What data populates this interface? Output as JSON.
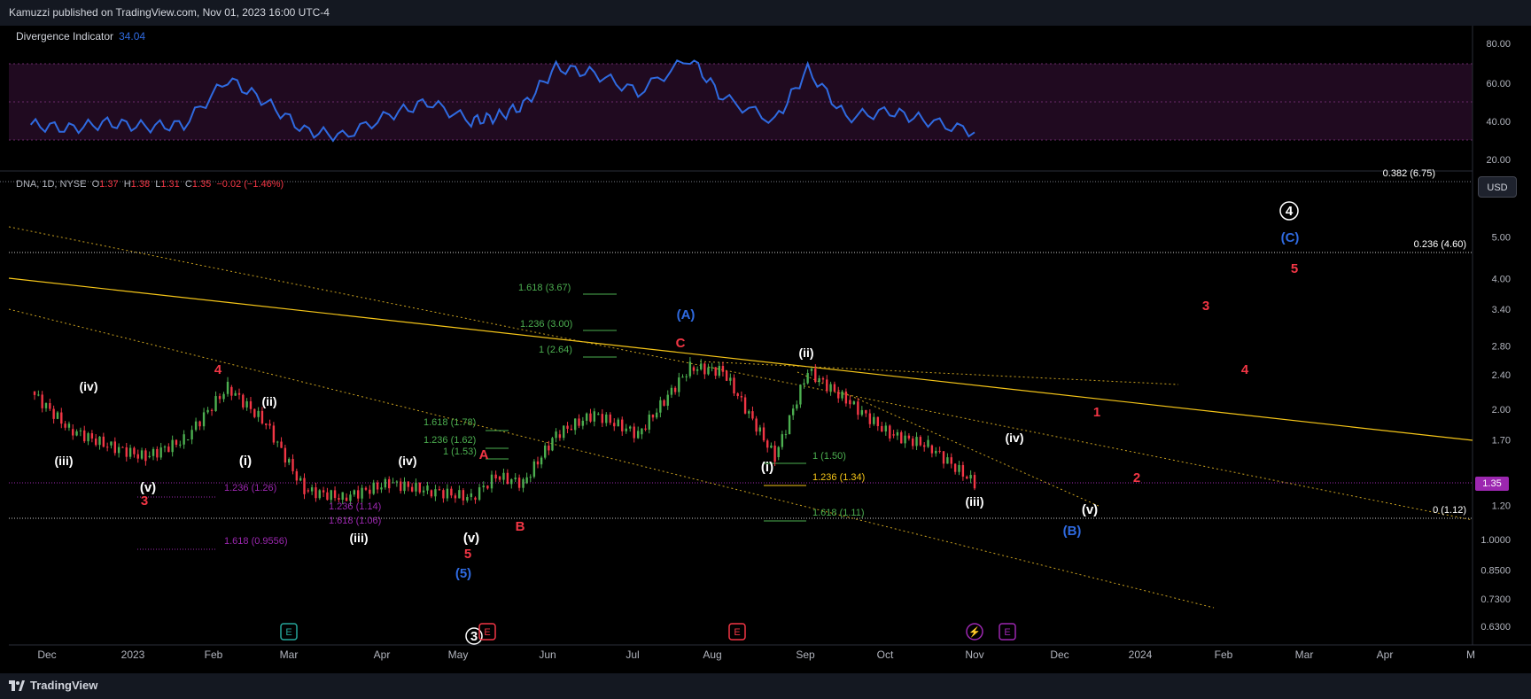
{
  "header": {
    "publisher_text": "Kamuzzi published on TradingView.com, Nov 01, 2023 16:00 UTC-4"
  },
  "footer": {
    "brand": "TradingView"
  },
  "oscillator": {
    "name": "Divergence Indicator",
    "value": "34.04",
    "y_ticks": [
      "80.00",
      "60.00",
      "40.00",
      "20.00"
    ],
    "levels": [
      70,
      50,
      30
    ],
    "line_color": "#2f6ae0",
    "band_color": "#2a0e2a"
  },
  "price_pane": {
    "legend": {
      "symbol": "DNA, 1D, NYSE",
      "open_label": "O",
      "open": "1.37",
      "high_label": "H",
      "high": "1.38",
      "low_label": "L",
      "low": "1.31",
      "close_label": "C",
      "close": "1.35",
      "change": "−0.02 (−1.46%)"
    },
    "currency_button": "USD",
    "last_price": "1.35",
    "last_price_color": "#9c27b0",
    "y_ticks": [
      "5.00",
      "4.00",
      "3.40",
      "2.80",
      "2.40",
      "2.00",
      "1.70",
      "1.20",
      "1.0000",
      "0.8500",
      "0.7300",
      "0.6300"
    ],
    "fib_labels": [
      "0.236 (4.60)",
      "0 (1.12)"
    ],
    "fib_top_partial": "0.382 (6.75)"
  },
  "x_axis": {
    "labels": [
      "Dec",
      "2023",
      "Feb",
      "Mar",
      "Apr",
      "May",
      "Jun",
      "Jul",
      "Aug",
      "Sep",
      "Oct",
      "Nov",
      "Dec",
      "2024",
      "Feb",
      "Mar",
      "Apr",
      "M"
    ]
  },
  "wave_labels": [
    {
      "text": "(iv)",
      "color": "#ffffff"
    },
    {
      "text": "(iii)",
      "color": "#ffffff"
    },
    {
      "text": "4",
      "color": "#f23645"
    },
    {
      "text": "(ii)",
      "color": "#ffffff"
    },
    {
      "text": "(i)",
      "color": "#ffffff"
    },
    {
      "text": "(v)",
      "color": "#ffffff"
    },
    {
      "text": "3",
      "color": "#f23645"
    },
    {
      "text": "(iv)",
      "color": "#ffffff"
    },
    {
      "text": "(iii)",
      "color": "#ffffff"
    },
    {
      "text": "(v)",
      "color": "#ffffff"
    },
    {
      "text": "5",
      "color": "#f23645"
    },
    {
      "text": "(5)",
      "color": "#2f6ae0"
    },
    {
      "text": "A",
      "color": "#f23645"
    },
    {
      "text": "B",
      "color": "#f23645"
    },
    {
      "text": "(A)",
      "color": "#2f6ae0"
    },
    {
      "text": "C",
      "color": "#f23645"
    },
    {
      "text": "(ii)",
      "color": "#ffffff"
    },
    {
      "text": "(i)",
      "color": "#ffffff"
    },
    {
      "text": "(iii)",
      "color": "#ffffff"
    },
    {
      "text": "(iv)",
      "color": "#ffffff"
    },
    {
      "text": "(v)",
      "color": "#ffffff"
    },
    {
      "text": "(B)",
      "color": "#2f6ae0"
    },
    {
      "text": "1",
      "color": "#f23645"
    },
    {
      "text": "2",
      "color": "#f23645"
    },
    {
      "text": "3",
      "color": "#f23645"
    },
    {
      "text": "4",
      "color": "#f23645"
    },
    {
      "text": "5",
      "color": "#f23645"
    },
    {
      "text": "(C)",
      "color": "#2f6ae0"
    },
    {
      "text": "4",
      "color": "#ffffff"
    },
    {
      "text": "3",
      "color": "#ffffff"
    }
  ],
  "fib_ext_labels": [
    {
      "text": "1.618 (3.67)",
      "color": "#4caf50"
    },
    {
      "text": "1.236 (3.00)",
      "color": "#4caf50"
    },
    {
      "text": "1 (2.64)",
      "color": "#4caf50"
    },
    {
      "text": "1.618 (1.78)",
      "color": "#4caf50"
    },
    {
      "text": "1.236 (1.62)",
      "color": "#4caf50"
    },
    {
      "text": "1 (1.53)",
      "color": "#4caf50"
    },
    {
      "text": "1.236 (1.26)",
      "color": "#9c27b0"
    },
    {
      "text": "1.236 (1.14)",
      "color": "#9c27b0"
    },
    {
      "text": "1.618 (1.06)",
      "color": "#9c27b0"
    },
    {
      "text": "1.618 (0.9556)",
      "color": "#9c27b0"
    },
    {
      "text": "1 (1.50)",
      "color": "#4caf50"
    },
    {
      "text": "1.236 (1.34)",
      "color": "#f5c518"
    },
    {
      "text": "1.618 (1.11)",
      "color": "#4caf50"
    }
  ],
  "event_markers": [
    {
      "glyph": "E",
      "color": "#26a69a"
    },
    {
      "glyph": "E",
      "color": "#f23645"
    },
    {
      "glyph": "E",
      "color": "#f23645"
    },
    {
      "glyph": "⚡",
      "color": "#9c27b0"
    },
    {
      "glyph": "E",
      "color": "#9c27b0"
    }
  ],
  "chart_data": {
    "type": "candlestick",
    "title": "DNA, 1D, NYSE",
    "y_scale": "log",
    "ylim": [
      0.6,
      6.2
    ],
    "x_range": [
      "2022-11-21",
      "2024-05-01"
    ],
    "colors": {
      "up": "#4caf50",
      "down": "#f23645",
      "oscillator": "#2f6ae0",
      "trendline": "#f5c518"
    },
    "price_series": {
      "name": "DNA",
      "dates": [
        "2022-11-21",
        "2022-12-05",
        "2022-12-19",
        "2023-01-02",
        "2023-01-16",
        "2023-02-01",
        "2023-02-15",
        "2023-03-01",
        "2023-03-15",
        "2023-04-01",
        "2023-04-15",
        "2023-05-01",
        "2023-05-10",
        "2023-05-20",
        "2023-06-01",
        "2023-06-15",
        "2023-07-01",
        "2023-07-20",
        "2023-08-01",
        "2023-08-20",
        "2023-09-01",
        "2023-09-15",
        "2023-10-01",
        "2023-10-15",
        "2023-11-01"
      ],
      "close": [
        2.2,
        1.8,
        1.65,
        1.55,
        1.7,
        2.25,
        1.85,
        1.3,
        1.25,
        1.35,
        1.3,
        1.25,
        1.4,
        1.35,
        1.75,
        1.95,
        1.75,
        2.5,
        2.45,
        1.55,
        2.45,
        2.1,
        1.75,
        1.65,
        1.35
      ]
    },
    "oscillator_series": {
      "name": "Divergence Indicator",
      "dates": [
        "2022-11-21",
        "2022-12-05",
        "2022-12-19",
        "2023-01-02",
        "2023-01-16",
        "2023-02-01",
        "2023-02-15",
        "2023-03-01",
        "2023-03-15",
        "2023-04-01",
        "2023-04-15",
        "2023-05-01",
        "2023-05-10",
        "2023-05-20",
        "2023-06-01",
        "2023-06-15",
        "2023-07-01",
        "2023-07-20",
        "2023-08-01",
        "2023-08-20",
        "2023-09-01",
        "2023-09-15",
        "2023-10-01",
        "2023-10-15",
        "2023-11-01"
      ],
      "values": [
        38,
        36,
        39,
        37,
        38,
        62,
        50,
        35,
        32,
        43,
        50,
        40,
        42,
        48,
        68,
        65,
        55,
        73,
        52,
        40,
        67,
        42,
        45,
        40,
        34.04
      ]
    },
    "last_close": 1.35
  }
}
